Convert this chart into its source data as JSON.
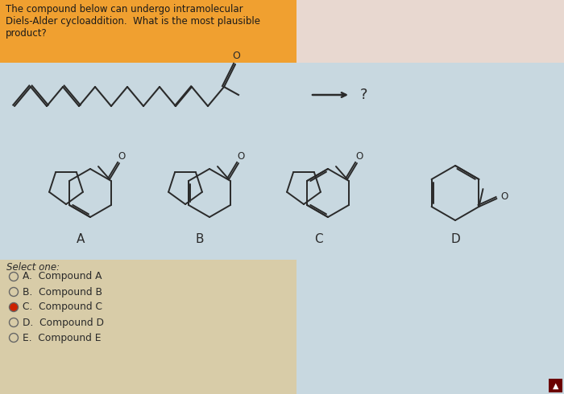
{
  "title_text": "The compound below can undergo intramolecular\nDiels-Alder cycloaddition.  What is the most plausible\nproduct?",
  "title_box_color": "#F0A030",
  "title_text_color": "#1a1a1a",
  "main_bg_color": "#C8D8E0",
  "upper_right_bg": "#E8D8D0",
  "lower_bg_color": "#D8CCA8",
  "select_text": "Select one:",
  "options": [
    "A.  Compound A",
    "B.  Compound B",
    "C.  Compound C",
    "D.  Compound D",
    "E.  Compound E"
  ],
  "selected_option": 2,
  "labels": [
    "A",
    "B",
    "C",
    "D"
  ],
  "arrow_text": "?"
}
